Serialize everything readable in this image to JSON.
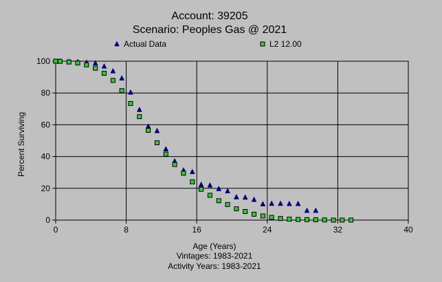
{
  "chart_data": {
    "type": "scatter",
    "title": "Account: 39205",
    "subtitle": "Scenario: Peoples Gas @ 2021",
    "xlabel": "Age (Years)",
    "ylabel": "Percent Surviving",
    "footnotes": [
      "Vintages: 1983-2021",
      "Activity Years: 1983-2021"
    ],
    "xlim": [
      0,
      40
    ],
    "ylim": [
      0,
      100
    ],
    "xticks": [
      0,
      8,
      16,
      24,
      32,
      40
    ],
    "yticks": [
      0,
      20,
      40,
      60,
      80,
      100
    ],
    "grid": true,
    "legend_position": "top",
    "series": [
      {
        "name": "Actual Data",
        "marker": "triangle",
        "color": "#000080",
        "x": [
          0,
          0.5,
          1.5,
          2.5,
          3.5,
          4.5,
          5.5,
          6.5,
          7.5,
          8.5,
          9.5,
          10.5,
          11.5,
          12.5,
          13.5,
          14.5,
          15.5,
          16.5,
          17.5,
          18.5,
          19.5,
          20.5,
          21.5,
          22.5,
          23.5,
          24.5,
          25.5,
          26.5,
          27.5,
          28.5,
          29.5
        ],
        "y": [
          100,
          100,
          99.8,
          99.6,
          99.2,
          98.8,
          96.8,
          93.8,
          89.3,
          80.4,
          69.5,
          59,
          56.2,
          44.7,
          37.1,
          31.4,
          30.4,
          22.3,
          21.9,
          19.7,
          18.3,
          14.5,
          14.3,
          12.9,
          10.1,
          10.4,
          10.4,
          10.3,
          10.3,
          6,
          6
        ]
      },
      {
        "name": "L2 12.00",
        "marker": "square",
        "color": "#33cc33",
        "x": [
          0,
          0.5,
          1.5,
          2.5,
          3.5,
          4.5,
          5.5,
          6.5,
          7.5,
          8.5,
          9.5,
          10.5,
          11.5,
          12.5,
          13.5,
          14.5,
          15.5,
          16.5,
          17.5,
          18.5,
          19.5,
          20.5,
          21.5,
          22.5,
          23.5,
          24.5,
          25.5,
          26.5,
          27.5,
          28.5,
          29.5,
          30.5,
          31.5,
          32.5,
          33.5
        ],
        "y": [
          100,
          99.9,
          99.5,
          98.9,
          97.7,
          95.6,
          92.4,
          87.9,
          81.5,
          73.4,
          65.1,
          56.5,
          48.7,
          41.5,
          35,
          29.5,
          24.1,
          19.4,
          15.6,
          12.2,
          9.8,
          7.1,
          5.4,
          3.7,
          2.6,
          1.7,
          1,
          0.6,
          0.4,
          0.3,
          0.2,
          0.1,
          0,
          0,
          0
        ]
      }
    ]
  }
}
